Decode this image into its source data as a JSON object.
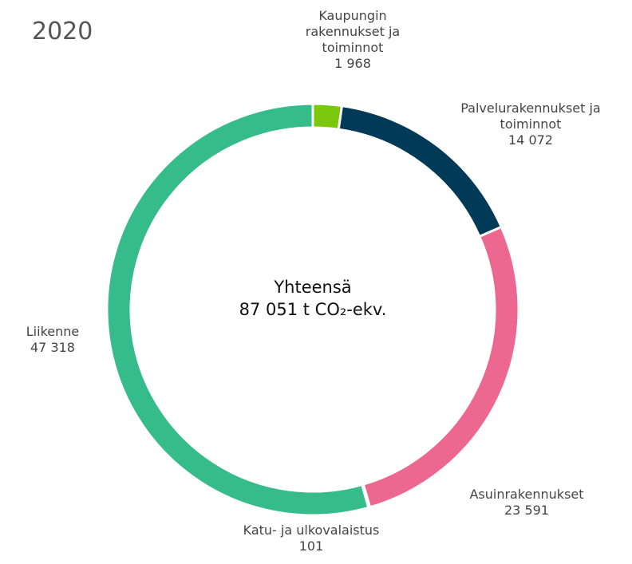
{
  "chart_data": {
    "type": "pie",
    "title": "2020",
    "center_text": [
      "Yhteensä",
      "87 051 t CO₂-ekv."
    ],
    "categories": [
      "Kaupungin rakennukset ja toiminnot",
      "Palvelurakennukset ja toiminnot",
      "Asuinrakennukset",
      "Katu- ja ulkovalaistus",
      "Liikenne"
    ],
    "values": [
      1968,
      14072,
      23591,
      101,
      47318
    ],
    "value_labels": [
      "1 968",
      "14 072",
      "23 591",
      "101",
      "47 318"
    ],
    "colors": [
      "#7ac70c",
      "#003a57",
      "#ec6891",
      "#a6a6a6",
      "#36bb8b"
    ]
  }
}
